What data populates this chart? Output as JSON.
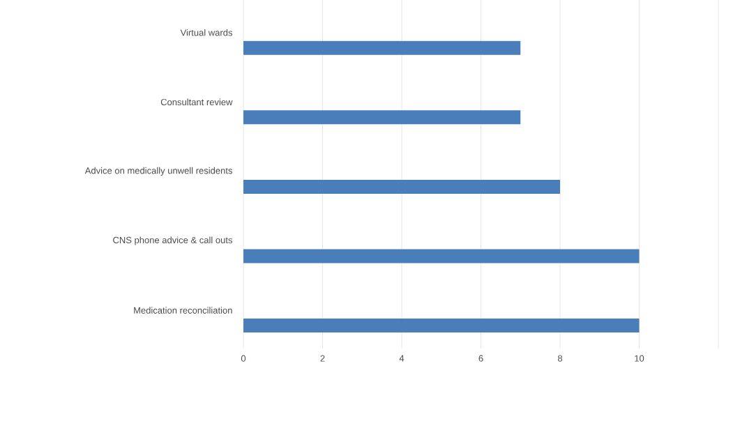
{
  "chart_data": {
    "type": "bar",
    "orientation": "horizontal",
    "categories": [
      "Virtual wards",
      "Consultant review",
      "Advice on medically unwell residents",
      "CNS phone advice & call outs",
      "Medication reconciliation"
    ],
    "values": [
      7,
      7,
      8,
      10,
      10
    ],
    "color": "#4a7ebb",
    "xlim": [
      0,
      12
    ],
    "xticks": [
      0,
      2,
      4,
      6,
      8,
      10,
      {
        "value": 12,
        "label": null
      }
    ],
    "grid": "x"
  }
}
